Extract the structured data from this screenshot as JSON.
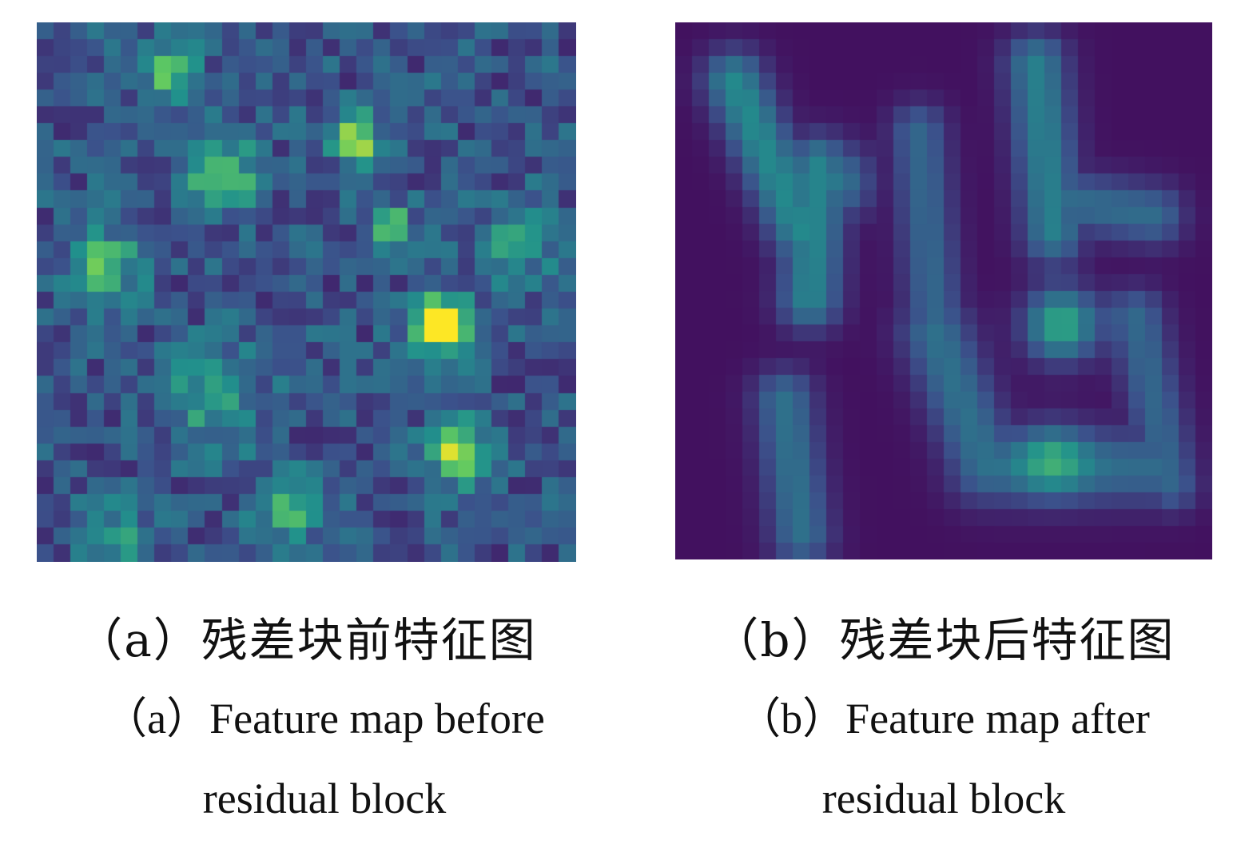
{
  "figures": [
    {
      "id": "a",
      "caption_zh": "（a）残差块前特征图",
      "caption_en_line1": "（a）Feature map before",
      "caption_en_line2": "residual block",
      "colormap": "viridis"
    },
    {
      "id": "b",
      "caption_zh": "（b）残差块后特征图",
      "caption_en_line1": "（b）Feature map after",
      "caption_en_line2": "residual block",
      "colormap": "viridis"
    }
  ],
  "palette": [
    "#440154",
    "#3b528b",
    "#21918c",
    "#5ec962",
    "#fde725"
  ]
}
